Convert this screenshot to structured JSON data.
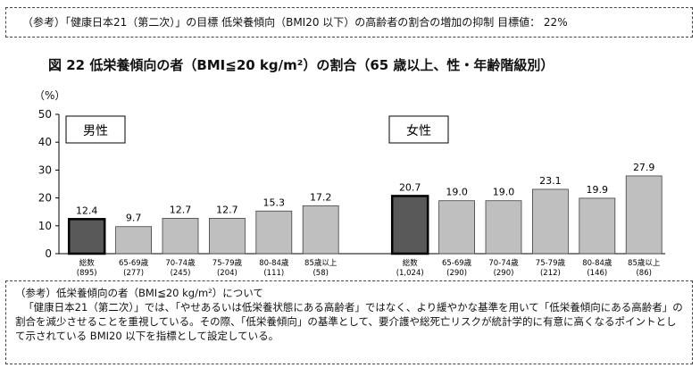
{
  "top_note": "（参考）「健康日本21（第二次）」の目標 低栄養傾向（BMI20 以下）の高齢者の割合の増加の抑制 目標値： 22%",
  "figure_title": "図 22 低栄養傾向の者（BMI≦20 kg/m²）の割合（65 歳以上、性・年齢階級別）",
  "colors": {
    "total_bar": "#595959",
    "age_bar": "#bfbfbf",
    "bar_stroke": "#404040",
    "total_stroke": "#000000"
  },
  "chart_data": {
    "type": "bar",
    "ylabel": "（%）",
    "ylim": [
      0,
      50
    ],
    "yticks": [
      0,
      10,
      20,
      30,
      40,
      50
    ],
    "grid": false,
    "panels": [
      {
        "label": "男性",
        "categories": [
          "総数",
          "65-69歳",
          "70-74歳",
          "75-79歳",
          "80-84歳",
          "85歳以上"
        ],
        "counts": [
          "(895)",
          "(277)",
          "(245)",
          "(204)",
          "(111)",
          "(58)"
        ],
        "values": [
          12.4,
          9.7,
          12.7,
          12.7,
          15.3,
          17.2
        ],
        "value_labels": [
          "12.4",
          "9.7",
          "12.7",
          "12.7",
          "15.3",
          "17.2"
        ]
      },
      {
        "label": "女性",
        "categories": [
          "総数",
          "65-69歳",
          "70-74歳",
          "75-79歳",
          "80-84歳",
          "85歳以上"
        ],
        "counts": [
          "(1,024)",
          "(290)",
          "(290)",
          "(212)",
          "(146)",
          "(86)"
        ],
        "values": [
          20.7,
          19.0,
          19.0,
          23.1,
          19.9,
          27.9
        ],
        "value_labels": [
          "20.7",
          "19.0",
          "19.0",
          "23.1",
          "19.9",
          "27.9"
        ]
      }
    ]
  },
  "bottom_note": {
    "heading": "（参考）低栄養傾向の者（BMI≦20 kg/m²）について",
    "body": "「健康日本21（第二次）」では、「やせあるいは低栄養状態にある高齢者」ではなく、より緩やかな基準を用いて「低栄養傾向にある高齢者」の割合を減少させることを重視している。その際、「低栄養傾向」の基準として、要介護や総死亡リスクが統計学的に有意に高くなるポイントとして示されている BMI20 以下を指標として設定している。"
  }
}
